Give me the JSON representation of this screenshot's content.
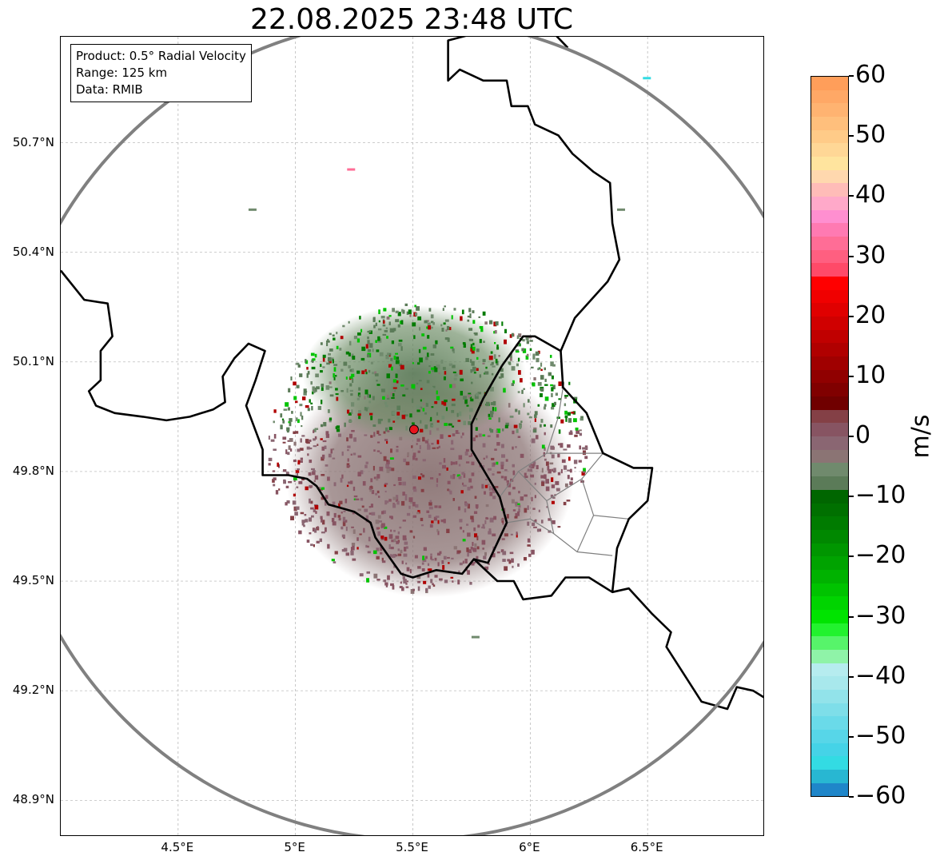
{
  "title": "22.08.2025 23:48 UTC",
  "info_box": {
    "product": "Product: 0.5° Radial Velocity",
    "range": "Range: 125 km",
    "data": "Data: RMIB"
  },
  "map": {
    "extent": {
      "lon_min": 4.0,
      "lon_max": 7.0,
      "lat_min": 48.8,
      "lat_max": 50.99
    },
    "lat_ticks": [
      {
        "value": 48.9,
        "label": "48.9°N"
      },
      {
        "value": 49.2,
        "label": "49.2°N"
      },
      {
        "value": 49.5,
        "label": "49.5°N"
      },
      {
        "value": 49.8,
        "label": "49.8°N"
      },
      {
        "value": 50.1,
        "label": "50.1°N"
      },
      {
        "value": 50.4,
        "label": "50.4°N"
      },
      {
        "value": 50.7,
        "label": "50.7°N"
      }
    ],
    "lon_ticks": [
      {
        "value": 4.5,
        "label": "4.5°E"
      },
      {
        "value": 5.0,
        "label": "5°E"
      },
      {
        "value": 5.5,
        "label": "5.5°E"
      },
      {
        "value": 6.0,
        "label": "6°E"
      },
      {
        "value": 6.5,
        "label": "6.5°E"
      }
    ],
    "grid": true,
    "radar_site": {
      "lon": 5.505,
      "lat": 49.915
    },
    "range_ring_km": 125,
    "colors": {
      "border": "#000000",
      "admin_border": "#808080",
      "range_ring": "#808080",
      "radar_marker": "#e8141c",
      "grid": "#b0b0b0"
    },
    "national_borders": [
      [
        [
          4.0,
          50.35
        ],
        [
          4.1,
          50.27
        ],
        [
          4.2,
          50.26
        ],
        [
          4.22,
          50.17
        ],
        [
          4.17,
          50.13
        ],
        [
          4.17,
          50.05
        ],
        [
          4.12,
          50.02
        ],
        [
          4.15,
          49.98
        ],
        [
          4.23,
          49.96
        ],
        [
          4.35,
          49.95
        ],
        [
          4.45,
          49.94
        ],
        [
          4.55,
          49.95
        ],
        [
          4.65,
          49.97
        ],
        [
          4.7,
          49.99
        ],
        [
          4.69,
          50.06
        ],
        [
          4.74,
          50.11
        ],
        [
          4.8,
          50.15
        ],
        [
          4.87,
          50.13
        ],
        [
          4.83,
          50.05
        ],
        [
          4.79,
          49.98
        ],
        [
          4.86,
          49.86
        ],
        [
          4.86,
          49.79
        ],
        [
          4.97,
          49.79
        ],
        [
          5.05,
          49.78
        ],
        [
          5.09,
          49.76
        ],
        [
          5.14,
          49.71
        ],
        [
          5.25,
          49.69
        ],
        [
          5.32,
          49.66
        ],
        [
          5.34,
          49.62
        ],
        [
          5.45,
          49.52
        ],
        [
          5.5,
          49.51
        ],
        [
          5.6,
          49.53
        ],
        [
          5.71,
          49.52
        ],
        [
          5.76,
          49.56
        ],
        [
          5.86,
          49.5
        ],
        [
          5.93,
          49.5
        ],
        [
          5.97,
          49.45
        ],
        [
          6.09,
          49.46
        ],
        [
          6.15,
          49.51
        ],
        [
          6.25,
          49.51
        ],
        [
          6.35,
          49.47
        ],
        [
          6.42,
          49.48
        ],
        [
          6.52,
          49.41
        ],
        [
          6.6,
          49.36
        ],
        [
          6.58,
          49.32
        ],
        [
          6.66,
          49.24
        ],
        [
          6.73,
          49.17
        ],
        [
          6.84,
          49.15
        ],
        [
          6.88,
          49.21
        ],
        [
          6.95,
          49.2
        ],
        [
          7.0,
          49.18
        ]
      ],
      [
        [
          5.88,
          50.09
        ],
        [
          5.8,
          50.0
        ],
        [
          5.75,
          49.93
        ],
        [
          5.75,
          49.86
        ],
        [
          5.87,
          49.73
        ],
        [
          5.9,
          49.66
        ],
        [
          5.82,
          49.55
        ],
        [
          5.76,
          49.56
        ]
      ],
      [
        [
          5.88,
          50.09
        ],
        [
          5.97,
          50.17
        ],
        [
          6.02,
          50.17
        ],
        [
          6.13,
          50.13
        ],
        [
          6.14,
          50.03
        ],
        [
          6.24,
          49.96
        ],
        [
          6.31,
          49.85
        ],
        [
          6.44,
          49.81
        ],
        [
          6.52,
          49.81
        ],
        [
          6.5,
          49.72
        ],
        [
          6.42,
          49.67
        ],
        [
          6.37,
          49.59
        ],
        [
          6.35,
          49.47
        ]
      ],
      [
        [
          6.13,
          50.13
        ],
        [
          6.19,
          50.22
        ],
        [
          6.33,
          50.32
        ],
        [
          6.38,
          50.38
        ],
        [
          6.35,
          50.48
        ],
        [
          6.34,
          50.59
        ],
        [
          6.27,
          50.62
        ],
        [
          6.18,
          50.67
        ],
        [
          6.12,
          50.72
        ],
        [
          6.02,
          50.75
        ],
        [
          5.99,
          50.8
        ],
        [
          5.92,
          50.8
        ],
        [
          5.9,
          50.87
        ],
        [
          5.8,
          50.87
        ],
        [
          5.7,
          50.9
        ],
        [
          5.65,
          50.87
        ],
        [
          5.65,
          50.98
        ],
        [
          5.77,
          51.0
        ]
      ],
      [
        [
          6.16,
          50.96
        ],
        [
          6.1,
          51.0
        ]
      ]
    ],
    "admin_borders": [
      [
        [
          5.9,
          49.66
        ],
        [
          6.0,
          49.67
        ],
        [
          6.1,
          49.63
        ],
        [
          6.2,
          49.58
        ],
        [
          6.35,
          49.57
        ]
      ],
      [
        [
          6.1,
          49.63
        ],
        [
          6.07,
          49.72
        ],
        [
          5.95,
          49.8
        ],
        [
          5.87,
          49.73
        ]
      ],
      [
        [
          5.95,
          49.8
        ],
        [
          6.07,
          49.85
        ],
        [
          6.2,
          49.85
        ],
        [
          6.31,
          49.85
        ]
      ],
      [
        [
          6.07,
          49.85
        ],
        [
          6.12,
          49.95
        ],
        [
          6.14,
          50.03
        ]
      ],
      [
        [
          6.2,
          49.58
        ],
        [
          6.27,
          49.68
        ],
        [
          6.42,
          49.67
        ]
      ],
      [
        [
          6.27,
          49.68
        ],
        [
          6.22,
          49.78
        ],
        [
          6.31,
          49.85
        ]
      ],
      [
        [
          6.07,
          49.72
        ],
        [
          6.22,
          49.78
        ]
      ]
    ]
  },
  "colorbar": {
    "label": "m/s",
    "min": -60,
    "max": 60,
    "ticks": [
      {
        "value": 60,
        "label": "60"
      },
      {
        "value": 50,
        "label": "50"
      },
      {
        "value": 40,
        "label": "40"
      },
      {
        "value": 30,
        "label": "30"
      },
      {
        "value": 20,
        "label": "20"
      },
      {
        "value": 10,
        "label": "10"
      },
      {
        "value": 0,
        "label": "0"
      },
      {
        "value": -10,
        "label": "−10"
      },
      {
        "value": -20,
        "label": "−20"
      },
      {
        "value": -30,
        "label": "−30"
      },
      {
        "value": -40,
        "label": "−40"
      },
      {
        "value": -50,
        "label": "−50"
      },
      {
        "value": -60,
        "label": "−60"
      }
    ],
    "colors": [
      "#ff9e5a",
      "#ffa866",
      "#ffb371",
      "#ffbf7c",
      "#ffcb88",
      "#ffd796",
      "#ffe49e",
      "#ffd8ae",
      "#ffbcb8",
      "#ffa9c9",
      "#ff8fd0",
      "#ff7ab2",
      "#ff6d96",
      "#ff5f80",
      "#ff4a68",
      "#ff0000",
      "#f00000",
      "#e00000",
      "#d00000",
      "#c00000",
      "#b00000",
      "#a00000",
      "#900000",
      "#800000",
      "#700000",
      "#844046",
      "#875462",
      "#8a6672",
      "#8b7474",
      "#708a6d",
      "#5b7b58",
      "#006600",
      "#007000",
      "#007b00",
      "#008800",
      "#009600",
      "#00a300",
      "#00b200",
      "#00c300",
      "#00d400",
      "#00e400",
      "#22f22e",
      "#57f46a",
      "#8ff3a8",
      "#b6ecef",
      "#a8e8ec",
      "#92e3ea",
      "#7edee9",
      "#6adae9",
      "#57d6e8",
      "#45d3e7",
      "#33dbe3",
      "#28b7d2",
      "#1f86c9"
    ]
  }
}
